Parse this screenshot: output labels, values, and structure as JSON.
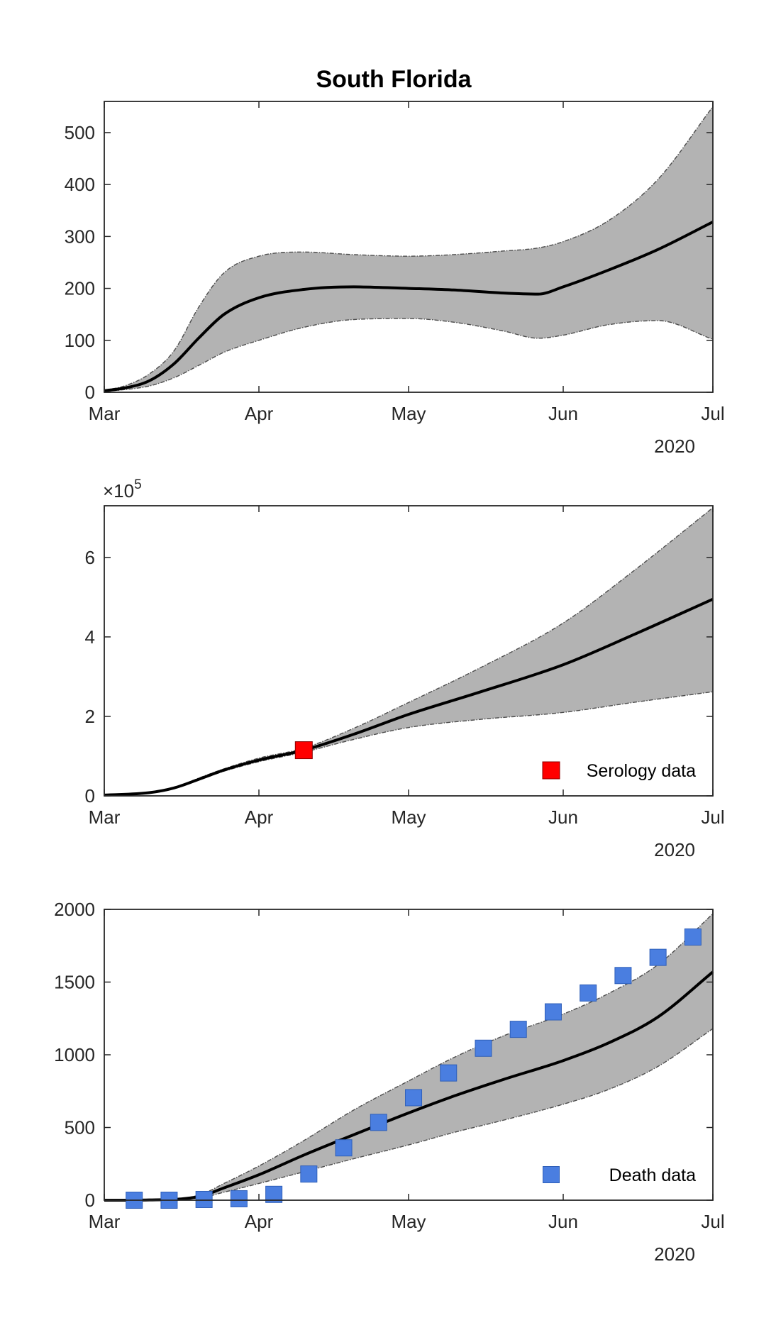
{
  "figure": {
    "title": "South Florida"
  },
  "colors": {
    "band": "#b3b3b3",
    "band_edge": "#4d4d4d",
    "line": "#000000",
    "serology_marker": "#ff0000",
    "death_marker": "#4a7ee0",
    "axes": "#262626"
  },
  "chart_data": [
    {
      "type": "line",
      "title": "South Florida",
      "xlabel": "",
      "ylabel": "",
      "x_axis": {
        "ticks": [
          "Mar",
          "Apr",
          "May",
          "Jun",
          "Jul"
        ],
        "year_label": "2020",
        "xlim": [
          "2020-03-01",
          "2020-07-01"
        ]
      },
      "ylim": [
        0,
        560
      ],
      "y_ticks": [
        "0",
        "100",
        "200",
        "300",
        "400",
        "500"
      ],
      "series": [
        {
          "role": "median",
          "x": [
            "2020-03-01",
            "2020-03-05",
            "2020-03-10",
            "2020-03-15",
            "2020-03-20",
            "2020-03-25",
            "2020-04-01",
            "2020-04-10",
            "2020-04-20",
            "2020-05-01",
            "2020-05-10",
            "2020-05-20",
            "2020-05-27",
            "2020-06-01",
            "2020-06-10",
            "2020-06-20",
            "2020-07-01"
          ],
          "values": [
            3,
            8,
            22,
            55,
            105,
            150,
            182,
            198,
            203,
            200,
            197,
            191,
            189,
            203,
            235,
            275,
            328
          ]
        },
        {
          "role": "lower bound",
          "x": [
            "2020-03-01",
            "2020-03-05",
            "2020-03-10",
            "2020-03-15",
            "2020-03-20",
            "2020-03-25",
            "2020-04-01",
            "2020-04-10",
            "2020-04-20",
            "2020-05-01",
            "2020-05-10",
            "2020-05-20",
            "2020-05-27",
            "2020-06-01",
            "2020-06-10",
            "2020-06-20",
            "2020-07-01"
          ],
          "values": [
            2,
            5,
            12,
            28,
            52,
            77,
            100,
            125,
            140,
            142,
            135,
            118,
            104,
            110,
            130,
            138,
            102
          ]
        },
        {
          "role": "upper bound",
          "x": [
            "2020-03-01",
            "2020-03-05",
            "2020-03-10",
            "2020-03-15",
            "2020-03-20",
            "2020-03-25",
            "2020-04-01",
            "2020-04-10",
            "2020-04-20",
            "2020-05-01",
            "2020-05-10",
            "2020-05-20",
            "2020-05-27",
            "2020-06-01",
            "2020-06-10",
            "2020-06-20",
            "2020-07-01"
          ],
          "values": [
            4,
            12,
            35,
            80,
            165,
            230,
            262,
            270,
            265,
            262,
            265,
            272,
            278,
            290,
            330,
            410,
            550
          ]
        }
      ]
    },
    {
      "type": "line",
      "title": "",
      "xlabel": "",
      "ylabel": "",
      "x_axis": {
        "ticks": [
          "Mar",
          "Apr",
          "May",
          "Jun",
          "Jul"
        ],
        "year_label": "2020",
        "xlim": [
          "2020-03-01",
          "2020-07-01"
        ]
      },
      "ylim": [
        0,
        7.3
      ],
      "y_ticks": [
        "0",
        "2",
        "4",
        "6"
      ],
      "y_multiplier": {
        "base": "×10",
        "exponent": "5"
      },
      "legend": {
        "entries": [
          "Serology data"
        ],
        "position": "bottom-right"
      },
      "series": [
        {
          "role": "median",
          "x": [
            "2020-03-01",
            "2020-03-10",
            "2020-03-15",
            "2020-03-20",
            "2020-03-25",
            "2020-04-01",
            "2020-04-10",
            "2020-04-20",
            "2020-05-01",
            "2020-05-15",
            "2020-06-01",
            "2020-06-15",
            "2020-07-01"
          ],
          "values": [
            0.02,
            0.08,
            0.2,
            0.42,
            0.65,
            0.9,
            1.15,
            1.55,
            2.05,
            2.6,
            3.3,
            4.05,
            4.95
          ]
        },
        {
          "role": "lower bound",
          "x": [
            "2020-03-01",
            "2020-03-10",
            "2020-03-15",
            "2020-03-20",
            "2020-03-25",
            "2020-04-01",
            "2020-04-10",
            "2020-04-20",
            "2020-05-01",
            "2020-05-15",
            "2020-06-01",
            "2020-06-15",
            "2020-07-01"
          ],
          "values": [
            0.02,
            0.08,
            0.2,
            0.4,
            0.62,
            0.86,
            1.1,
            1.42,
            1.72,
            1.92,
            2.1,
            2.35,
            2.62
          ]
        },
        {
          "role": "upper bound",
          "x": [
            "2020-03-01",
            "2020-03-10",
            "2020-03-15",
            "2020-03-20",
            "2020-03-25",
            "2020-04-01",
            "2020-04-10",
            "2020-04-20",
            "2020-05-01",
            "2020-05-15",
            "2020-06-01",
            "2020-06-15",
            "2020-07-01"
          ],
          "values": [
            0.02,
            0.08,
            0.2,
            0.45,
            0.68,
            0.95,
            1.2,
            1.7,
            2.35,
            3.2,
            4.35,
            5.65,
            7.25
          ]
        },
        {
          "name": "Serology data",
          "role": "observations",
          "x": [
            "2020-04-10"
          ],
          "values": [
            1.15
          ]
        }
      ]
    },
    {
      "type": "line",
      "title": "",
      "xlabel": "",
      "ylabel": "",
      "x_axis": {
        "ticks": [
          "Mar",
          "Apr",
          "May",
          "Jun",
          "Jul"
        ],
        "year_label": "2020",
        "xlim": [
          "2020-03-01",
          "2020-07-01"
        ]
      },
      "ylim": [
        0,
        2000
      ],
      "y_ticks": [
        "0",
        "500",
        "1000",
        "1500",
        "2000"
      ],
      "legend": {
        "entries": [
          "Death data"
        ],
        "position": "bottom-right"
      },
      "series": [
        {
          "role": "median",
          "x": [
            "2020-03-01",
            "2020-03-10",
            "2020-03-20",
            "2020-03-25",
            "2020-04-01",
            "2020-04-10",
            "2020-04-20",
            "2020-05-01",
            "2020-05-10",
            "2020-05-20",
            "2020-06-01",
            "2020-06-10",
            "2020-06-20",
            "2020-07-01"
          ],
          "values": [
            0,
            2,
            25,
            85,
            175,
            310,
            450,
            600,
            715,
            830,
            960,
            1080,
            1260,
            1570
          ]
        },
        {
          "role": "lower bound",
          "x": [
            "2020-03-01",
            "2020-03-10",
            "2020-03-20",
            "2020-03-25",
            "2020-04-01",
            "2020-04-10",
            "2020-04-20",
            "2020-05-01",
            "2020-05-10",
            "2020-05-20",
            "2020-06-01",
            "2020-06-10",
            "2020-06-20",
            "2020-07-01"
          ],
          "values": [
            0,
            2,
            15,
            55,
            115,
            195,
            285,
            380,
            465,
            550,
            660,
            760,
            920,
            1180
          ]
        },
        {
          "role": "upper bound",
          "x": [
            "2020-03-01",
            "2020-03-10",
            "2020-03-20",
            "2020-03-25",
            "2020-04-01",
            "2020-04-10",
            "2020-04-20",
            "2020-05-01",
            "2020-05-10",
            "2020-05-20",
            "2020-06-01",
            "2020-06-10",
            "2020-06-20",
            "2020-07-01"
          ],
          "values": [
            0,
            3,
            35,
            115,
            235,
            410,
            620,
            820,
            980,
            1130,
            1280,
            1420,
            1620,
            1970
          ]
        },
        {
          "name": "Death data",
          "role": "observations",
          "x": [
            "2020-03-07",
            "2020-03-14",
            "2020-03-21",
            "2020-03-28",
            "2020-04-04",
            "2020-04-11",
            "2020-04-18",
            "2020-04-25",
            "2020-05-02",
            "2020-05-09",
            "2020-05-16",
            "2020-05-23",
            "2020-05-30",
            "2020-06-06",
            "2020-06-13",
            "2020-06-20",
            "2020-06-27"
          ],
          "values": [
            0,
            0,
            5,
            10,
            40,
            180,
            360,
            535,
            705,
            875,
            1045,
            1175,
            1295,
            1425,
            1545,
            1670,
            1810
          ]
        }
      ]
    }
  ]
}
